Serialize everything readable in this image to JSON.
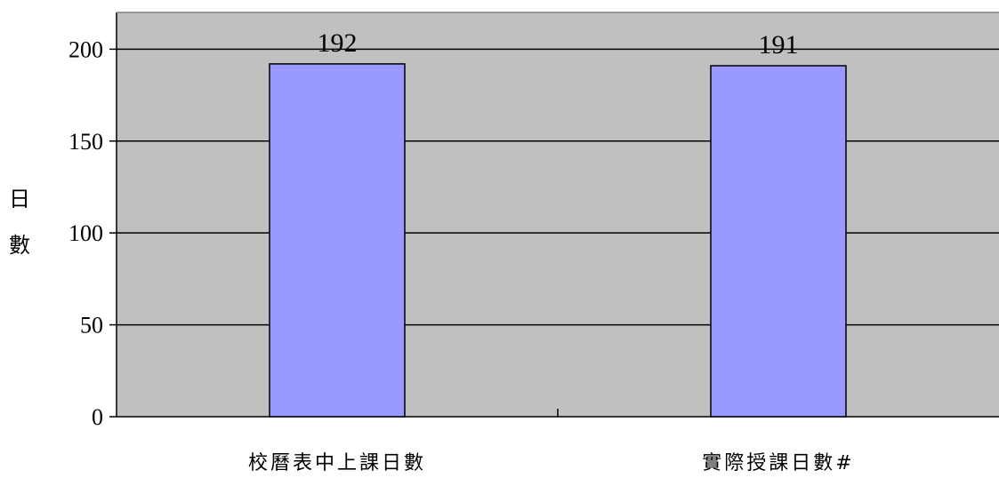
{
  "chart_data": {
    "type": "bar",
    "categories": [
      "校曆表中上課日數",
      "實際授課日數#"
    ],
    "values": [
      192,
      191
    ],
    "data_labels": [
      "192",
      "191"
    ],
    "title": "",
    "xlabel": "",
    "ylabel": "日數",
    "ylim": [
      0,
      220
    ],
    "yticks": [
      0,
      50,
      100,
      150,
      200
    ],
    "grid": true,
    "legend": "none",
    "colors": {
      "bar": "#9999ff",
      "plot_background": "#c0c0c0",
      "gridline": "#000000",
      "bar_border": "#000000"
    }
  }
}
